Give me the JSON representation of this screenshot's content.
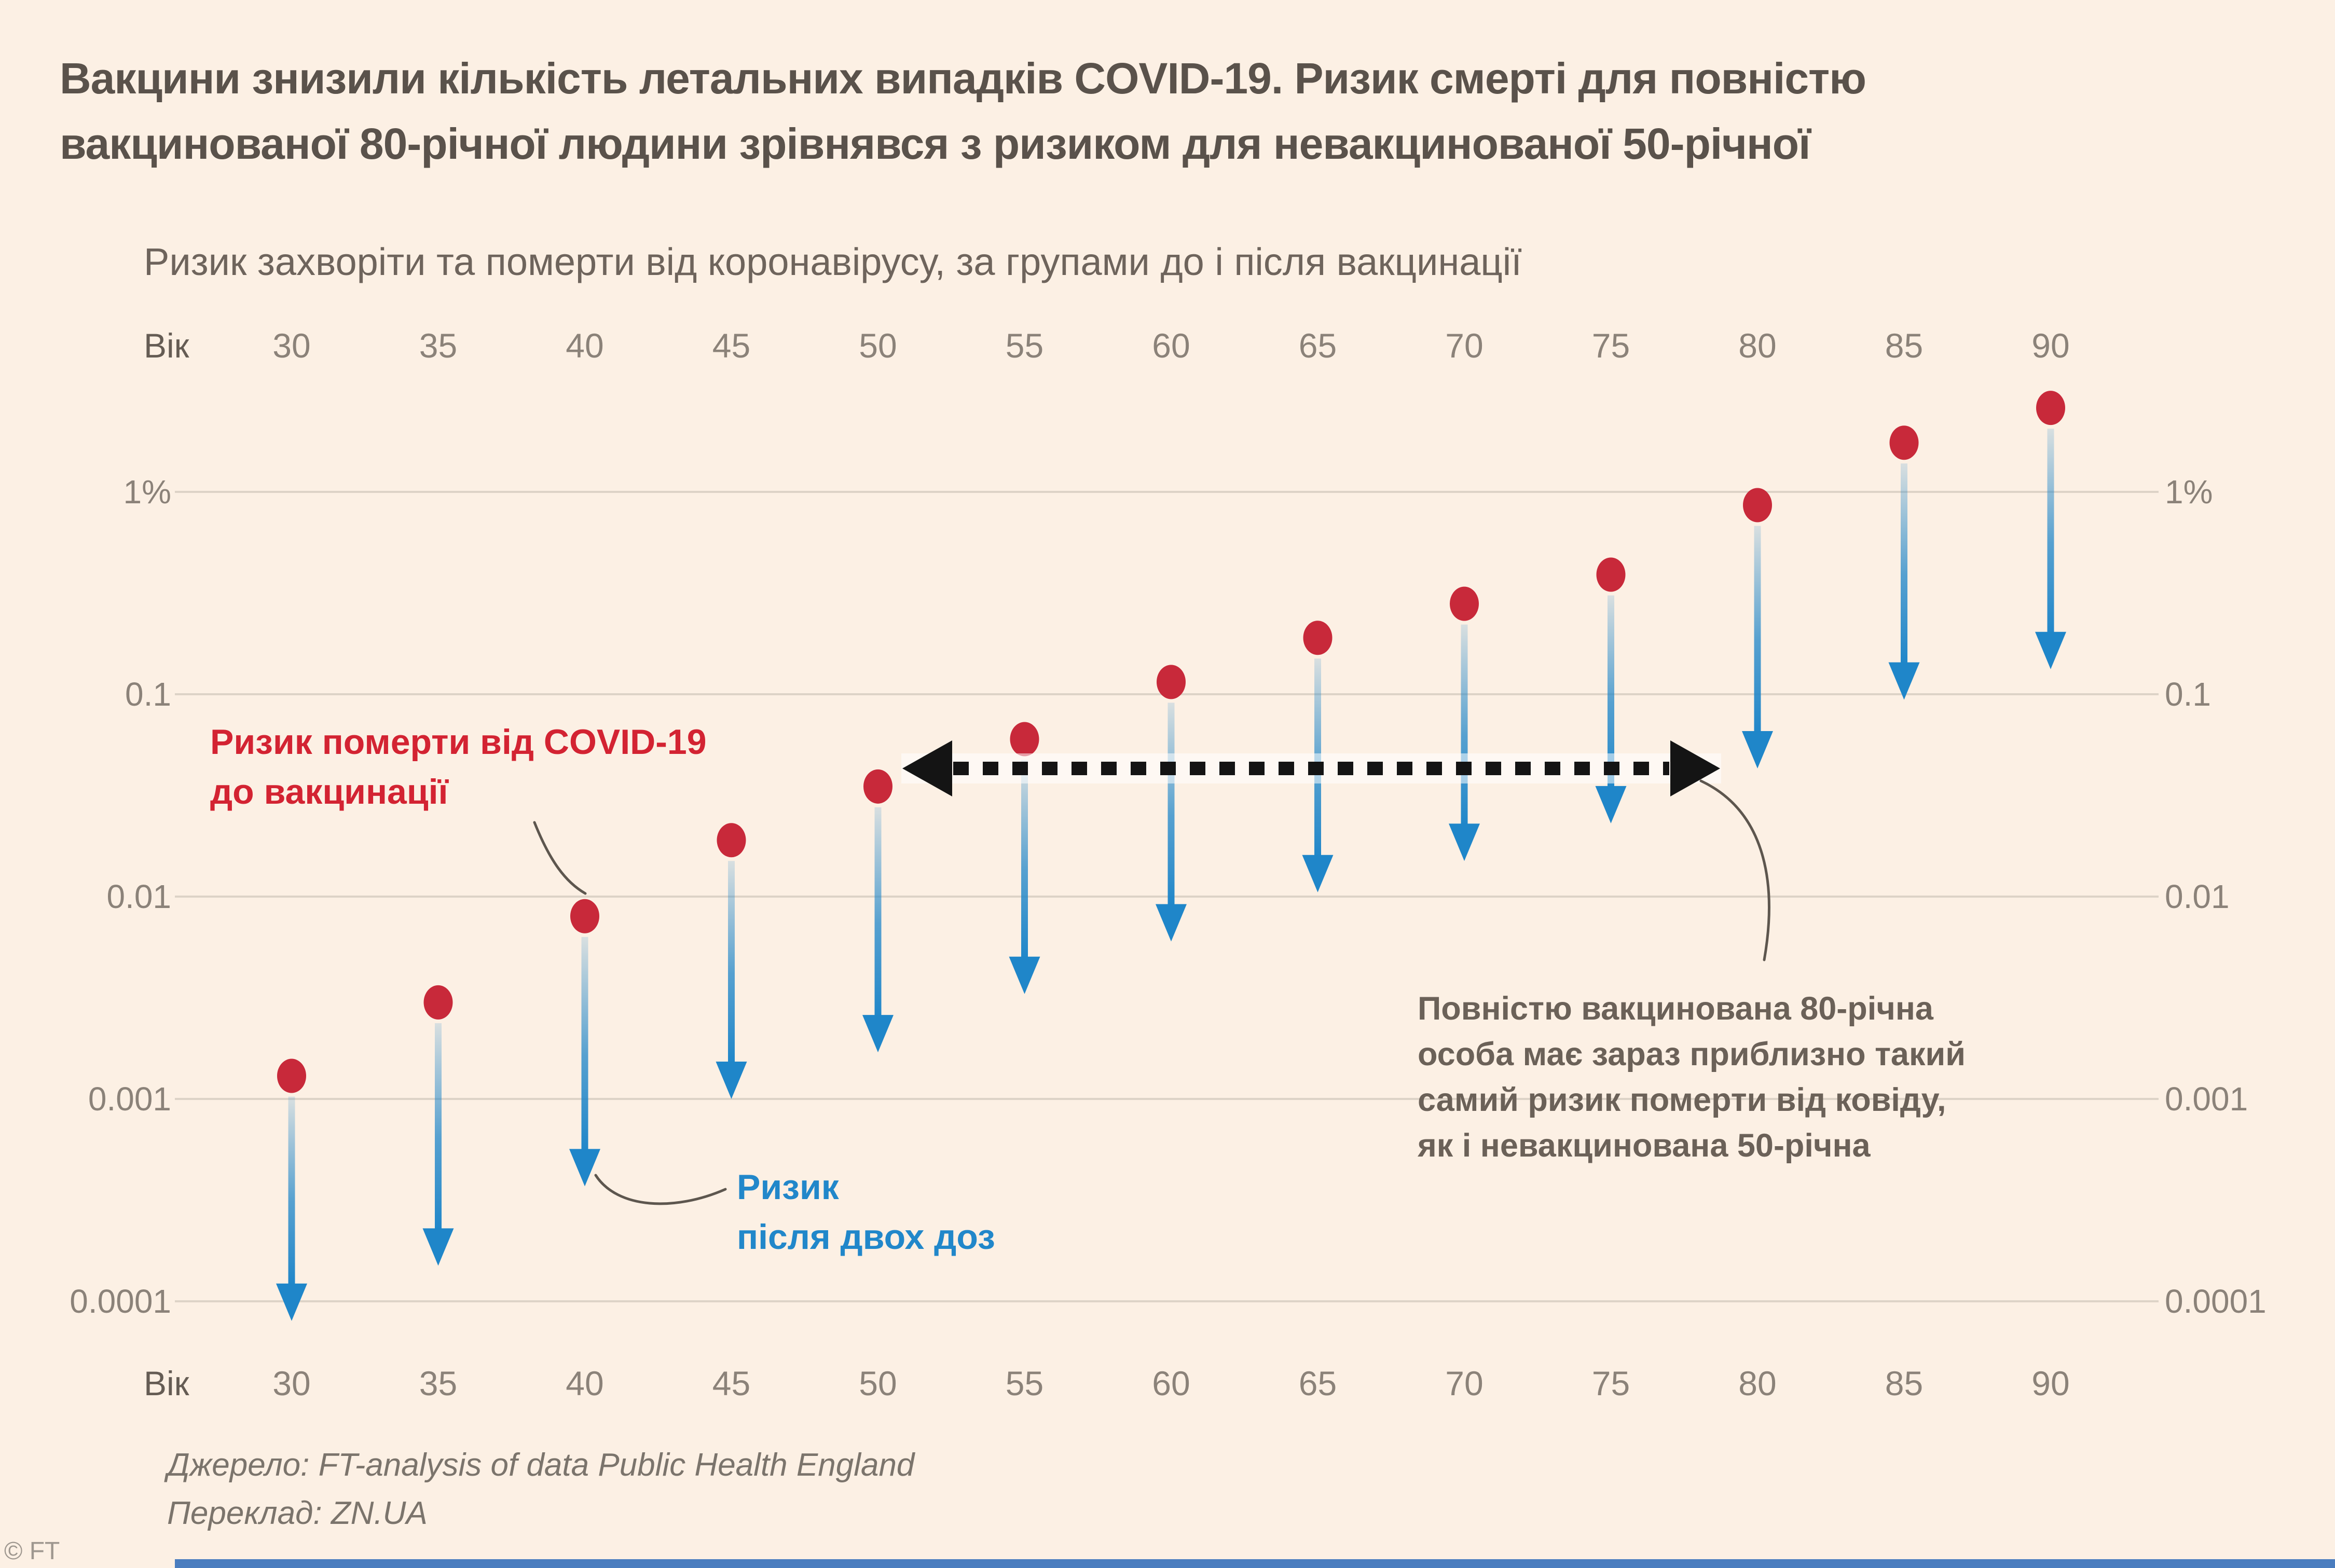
{
  "header": {
    "title": "Вакцини знизили кількість летальних випадків COVID-19. Ризик смерті для повністю\nвакцинованої 80-річної людини зрівнявся з ризиком для невакцинованої 50-річної",
    "subtitle": "Ризик захворіти та померти від коронавірусу, за групами до і після вакцинації"
  },
  "axis": {
    "age_label": "Вік",
    "ages": [
      "30",
      "35",
      "40",
      "45",
      "50",
      "55",
      "60",
      "65",
      "70",
      "75",
      "80",
      "85",
      "90"
    ],
    "y_ticks": [
      "1%",
      "0.1",
      "0.01",
      "0.001",
      "0.0001"
    ],
    "y_tick_values": [
      1,
      0.1,
      0.01,
      0.001,
      0.0001
    ]
  },
  "chart_data": {
    "type": "scatter",
    "subtype": "dumbbell-arrows",
    "unit": "percent",
    "yscale": "log",
    "ylim": [
      7e-05,
      3
    ],
    "grid": "horizontal",
    "x": [
      30,
      35,
      40,
      45,
      50,
      55,
      60,
      65,
      70,
      75,
      80,
      85,
      90
    ],
    "series": [
      {
        "name": "Ризик померти від COVID-19 до вакцинації",
        "color": "#c8293a",
        "values": [
          0.0013,
          0.003,
          0.008,
          0.019,
          0.035,
          0.06,
          0.115,
          0.19,
          0.28,
          0.39,
          0.86,
          1.75,
          2.6
        ]
      },
      {
        "name": "Ризик після двох доз",
        "color": "#1f86c9",
        "values": [
          8e-05,
          0.00015,
          0.00037,
          0.001,
          0.0017,
          0.0033,
          0.006,
          0.0105,
          0.015,
          0.023,
          0.043,
          0.094,
          0.133
        ]
      }
    ],
    "comparison_arrow": {
      "from_age": 50,
      "to_age": 80,
      "style": "dashed-double-headed"
    }
  },
  "labels": {
    "before": "Ризик померти від COVID-19\nдо вакцинації",
    "after": "Ризик\nпісля двох доз"
  },
  "annotation": {
    "text": "Повністю вакцинована 80-річна\nособа має зараз приблизно такий\nсамий ризик померти від ковіду,\nяк і невакцинована 50-річна"
  },
  "source": {
    "line1": "Джерело: FT-analysis of data Public Health England",
    "line2": "Переклад: ZN.UA"
  },
  "footer": {
    "copyright": "© FT"
  },
  "colors": {
    "background": "#fcf0e4",
    "title": "#5a524b",
    "subtitle": "#6e645c",
    "axis_label": "#655c54",
    "tick": "#8b8279",
    "grid": "#ddd3c7",
    "red": "#c8293a",
    "blue": "#1f86c9",
    "red_label": "#d32332",
    "blue_label": "#2187ca",
    "annotation": "#6b6158",
    "source": "#7b746c",
    "copyright": "#9e978f",
    "dashed_arrow": "#141414",
    "footer_bar": "#4a7dbf"
  }
}
